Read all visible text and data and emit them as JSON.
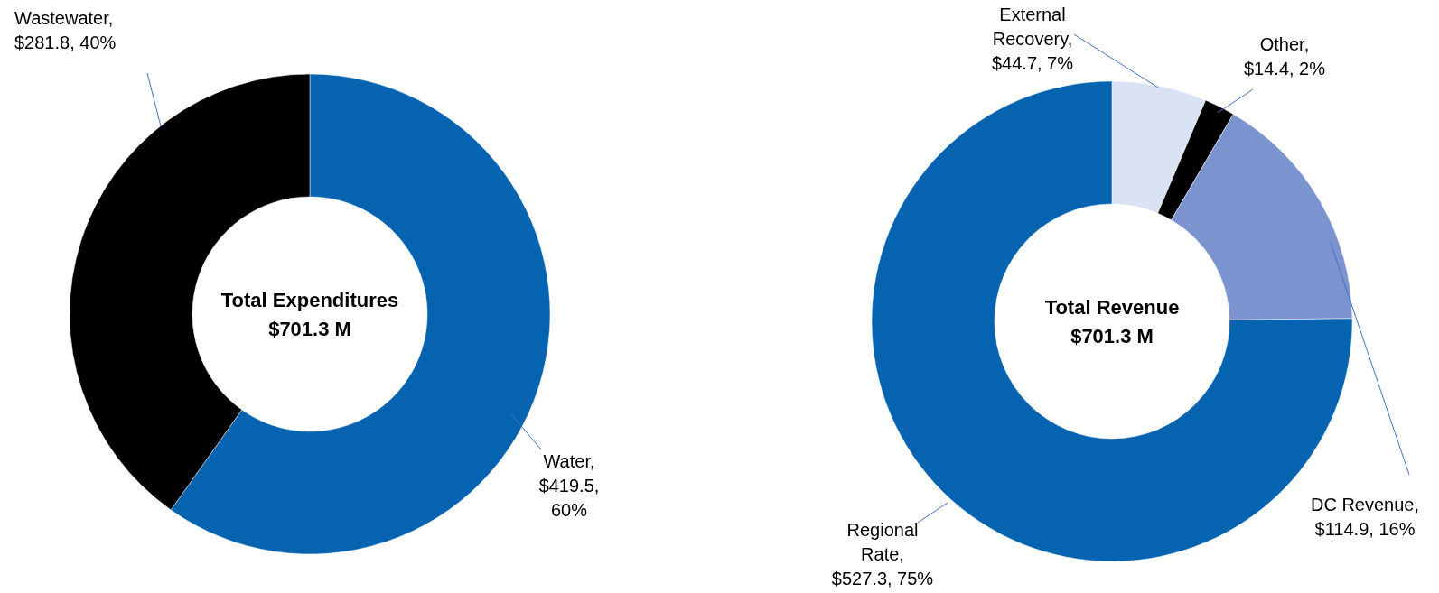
{
  "chart_data": [
    {
      "type": "donut",
      "title": "Total Expenditures",
      "subtitle": "$701.3 M",
      "categories": [
        "Wastewater",
        "Water"
      ],
      "values": [
        281.8,
        419.5
      ],
      "colors": [
        "#000000",
        "#0563b0"
      ],
      "value_labels": [
        ", $281.8, 40%",
        ", $419.5, 60%"
      ]
    },
    {
      "type": "donut",
      "title": "Total Revenue",
      "subtitle": "$701.3 M",
      "categories": [
        "External Recovery",
        "Other",
        "DC Revenue",
        "Regional Rate"
      ],
      "values": [
        44.7,
        14.4,
        114.9,
        527.3
      ],
      "colors": [
        "#dae3f3",
        "#000000",
        "#7b93cf",
        "#0563b0"
      ],
      "value_labels": [
        ", $44.7, 7%",
        ", $14.4, 2%",
        ", $114.9, 16%",
        ", $527.3, 75%"
      ]
    }
  ]
}
